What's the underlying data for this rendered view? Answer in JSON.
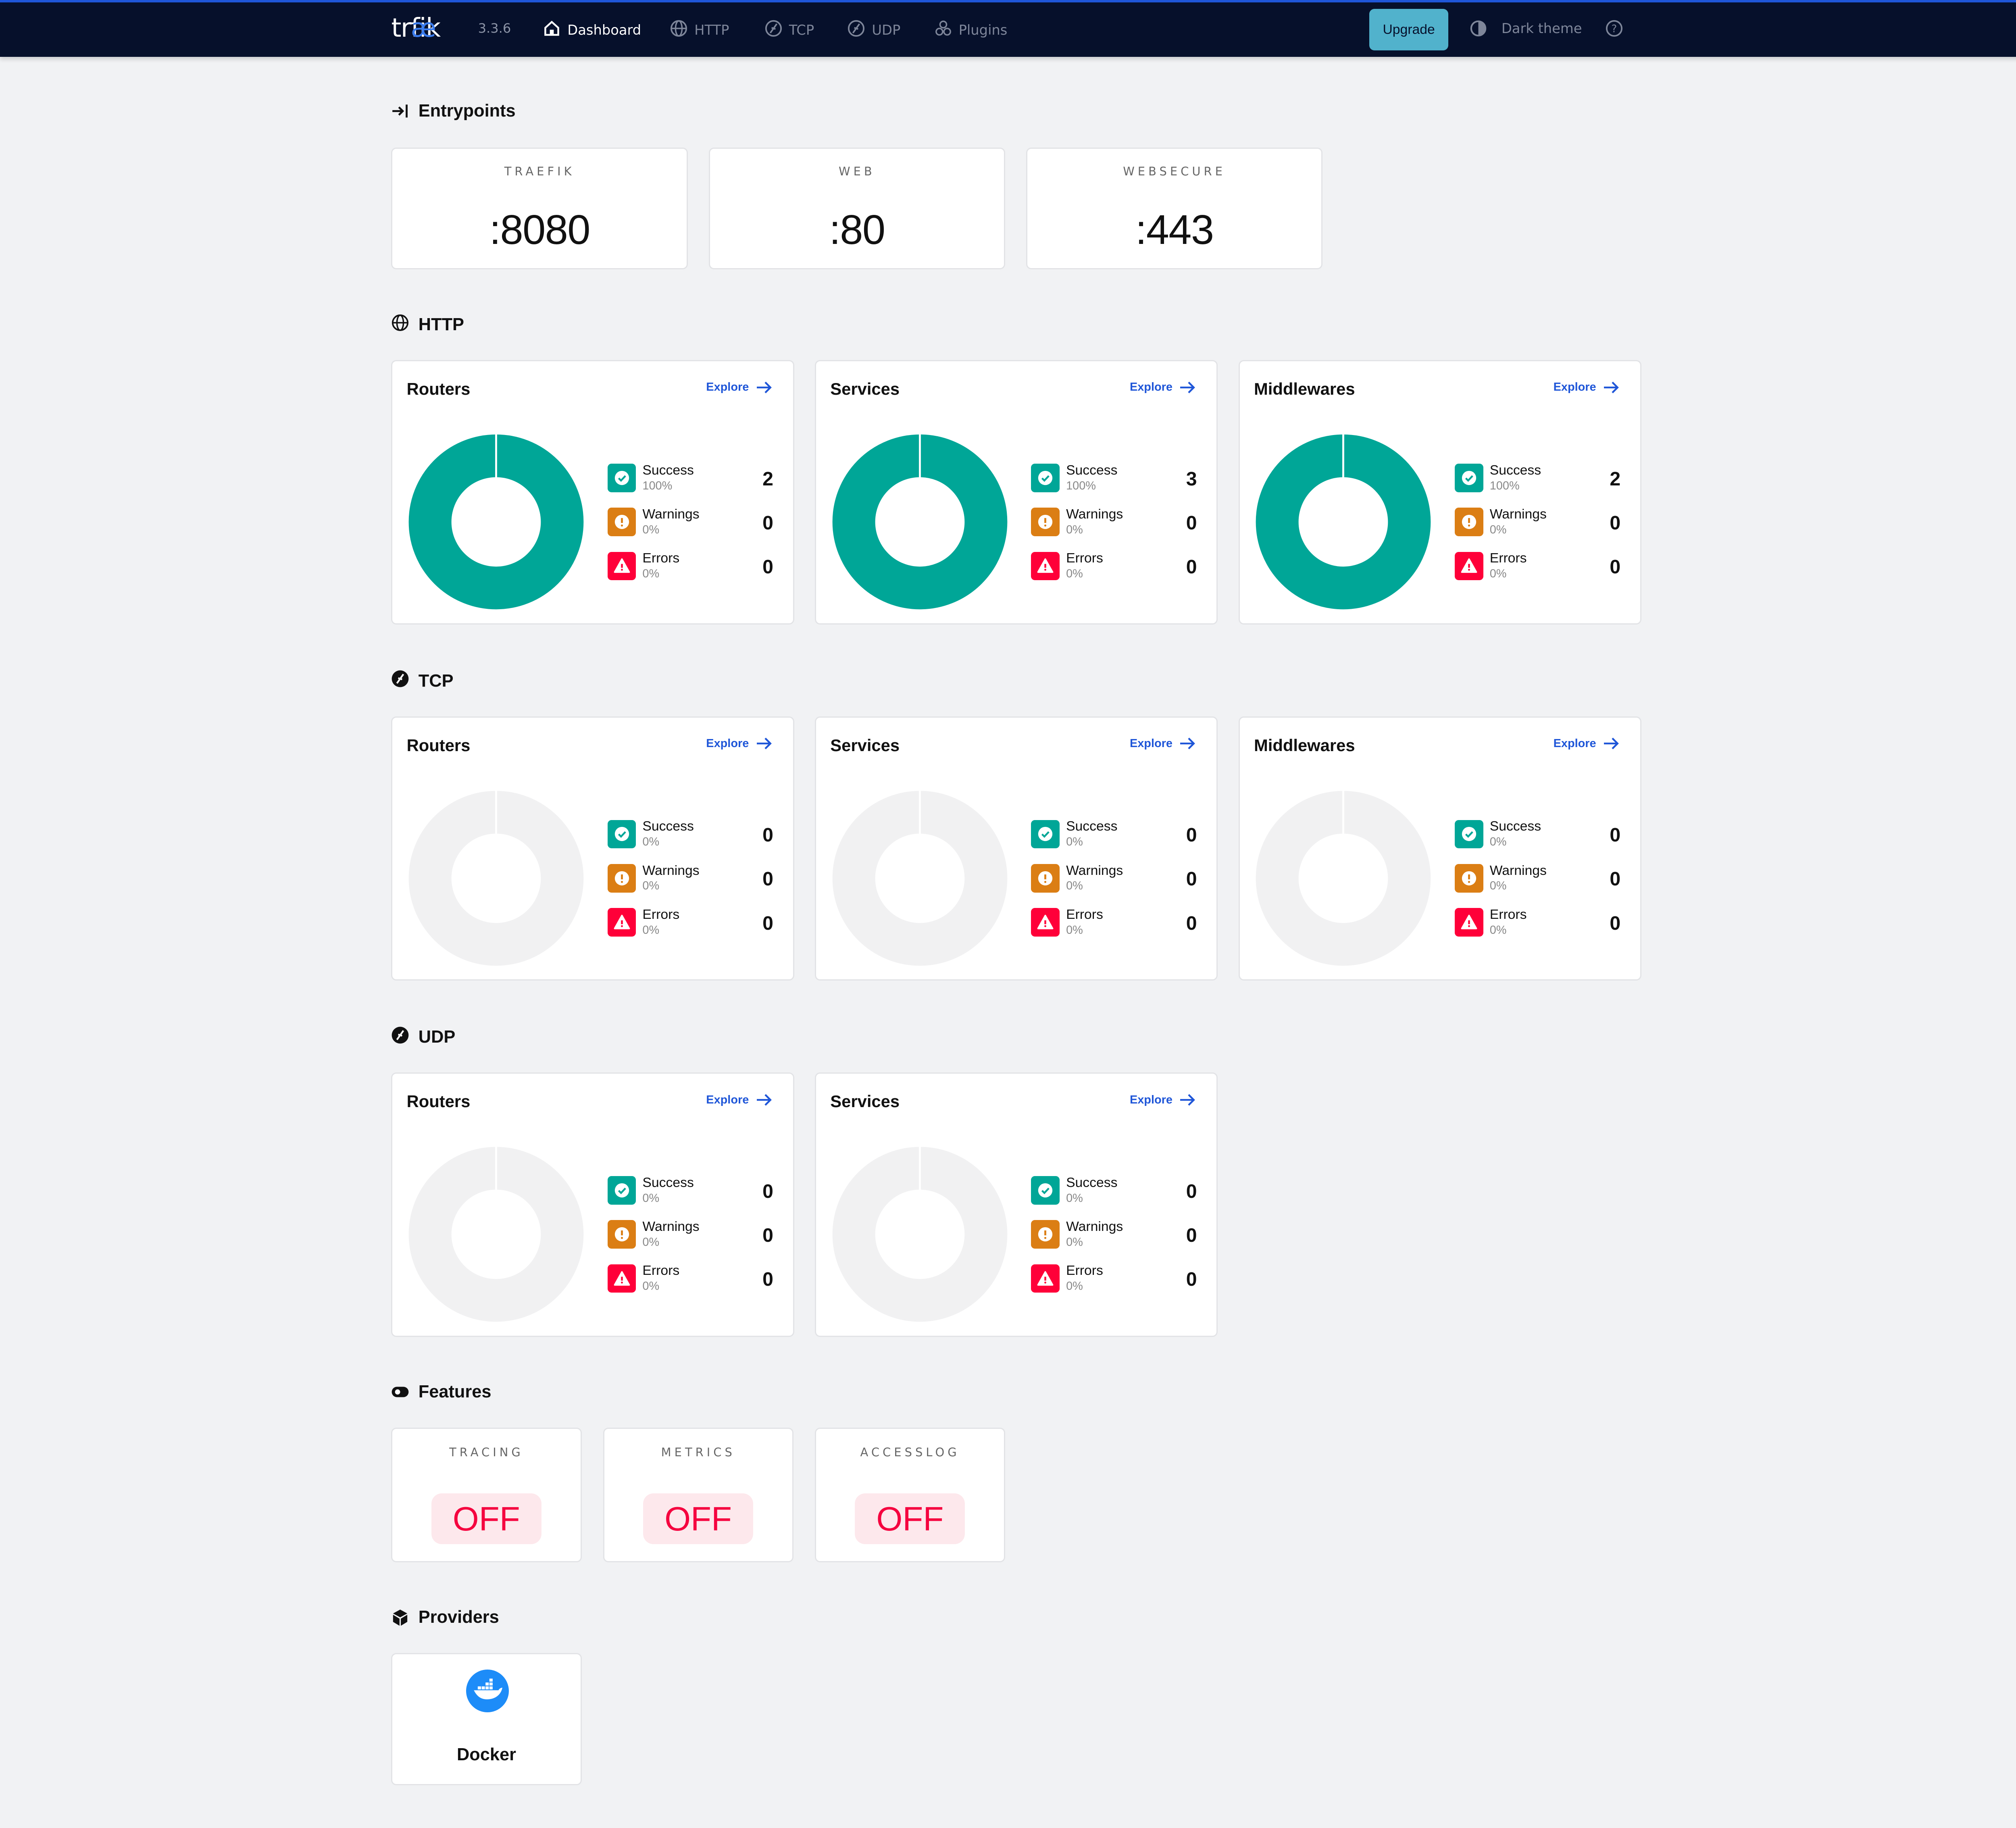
{
  "nav": {
    "logo": "træfik",
    "version": "3.3.6",
    "items": [
      {
        "label": "Dashboard",
        "icon": "home-icon",
        "active": true
      },
      {
        "label": "HTTP",
        "icon": "globe-icon",
        "active": false
      },
      {
        "label": "TCP",
        "icon": "tcp-icon",
        "active": false
      },
      {
        "label": "UDP",
        "icon": "udp-icon",
        "active": false
      },
      {
        "label": "Plugins",
        "icon": "plugins-icon",
        "active": false
      }
    ],
    "upgrade": "Upgrade",
    "theme": "Dark theme",
    "help_icon": "help-icon"
  },
  "colors": {
    "success": "#00a697",
    "warning": "#db7e14",
    "error": "#ff0039",
    "accent": "#1f56d8",
    "empty": "#f1f1f2"
  },
  "entrypoints": {
    "title": "Entrypoints",
    "items": [
      {
        "name": "TRAEFIK",
        "value": ":8080"
      },
      {
        "name": "WEB",
        "value": ":80"
      },
      {
        "name": "WEBSECURE",
        "value": ":443"
      }
    ]
  },
  "sections": [
    {
      "title": "HTTP",
      "icon": "globe-icon",
      "cards": [
        {
          "title": "Routers",
          "explore": "Explore",
          "stats": [
            {
              "label": "Success",
              "percent": "100%",
              "count": "2"
            },
            {
              "label": "Warnings",
              "percent": "0%",
              "count": "0"
            },
            {
              "label": "Errors",
              "percent": "0%",
              "count": "0"
            }
          ]
        },
        {
          "title": "Services",
          "explore": "Explore",
          "stats": [
            {
              "label": "Success",
              "percent": "100%",
              "count": "3"
            },
            {
              "label": "Warnings",
              "percent": "0%",
              "count": "0"
            },
            {
              "label": "Errors",
              "percent": "0%",
              "count": "0"
            }
          ]
        },
        {
          "title": "Middlewares",
          "explore": "Explore",
          "stats": [
            {
              "label": "Success",
              "percent": "100%",
              "count": "2"
            },
            {
              "label": "Warnings",
              "percent": "0%",
              "count": "0"
            },
            {
              "label": "Errors",
              "percent": "0%",
              "count": "0"
            }
          ]
        }
      ]
    },
    {
      "title": "TCP",
      "icon": "tcp-icon",
      "cards": [
        {
          "title": "Routers",
          "explore": "Explore",
          "stats": [
            {
              "label": "Success",
              "percent": "0%",
              "count": "0"
            },
            {
              "label": "Warnings",
              "percent": "0%",
              "count": "0"
            },
            {
              "label": "Errors",
              "percent": "0%",
              "count": "0"
            }
          ]
        },
        {
          "title": "Services",
          "explore": "Explore",
          "stats": [
            {
              "label": "Success",
              "percent": "0%",
              "count": "0"
            },
            {
              "label": "Warnings",
              "percent": "0%",
              "count": "0"
            },
            {
              "label": "Errors",
              "percent": "0%",
              "count": "0"
            }
          ]
        },
        {
          "title": "Middlewares",
          "explore": "Explore",
          "stats": [
            {
              "label": "Success",
              "percent": "0%",
              "count": "0"
            },
            {
              "label": "Warnings",
              "percent": "0%",
              "count": "0"
            },
            {
              "label": "Errors",
              "percent": "0%",
              "count": "0"
            }
          ]
        }
      ]
    },
    {
      "title": "UDP",
      "icon": "udp-icon",
      "cards": [
        {
          "title": "Routers",
          "explore": "Explore",
          "stats": [
            {
              "label": "Success",
              "percent": "0%",
              "count": "0"
            },
            {
              "label": "Warnings",
              "percent": "0%",
              "count": "0"
            },
            {
              "label": "Errors",
              "percent": "0%",
              "count": "0"
            }
          ]
        },
        {
          "title": "Services",
          "explore": "Explore",
          "stats": [
            {
              "label": "Success",
              "percent": "0%",
              "count": "0"
            },
            {
              "label": "Warnings",
              "percent": "0%",
              "count": "0"
            },
            {
              "label": "Errors",
              "percent": "0%",
              "count": "0"
            }
          ]
        }
      ]
    }
  ],
  "features": {
    "title": "Features",
    "items": [
      {
        "name": "TRACING",
        "value": "OFF"
      },
      {
        "name": "METRICS",
        "value": "OFF"
      },
      {
        "name": "ACCESSLOG",
        "value": "OFF"
      }
    ]
  },
  "providers": {
    "title": "Providers",
    "items": [
      {
        "name": "Docker",
        "icon": "docker-icon"
      }
    ]
  }
}
